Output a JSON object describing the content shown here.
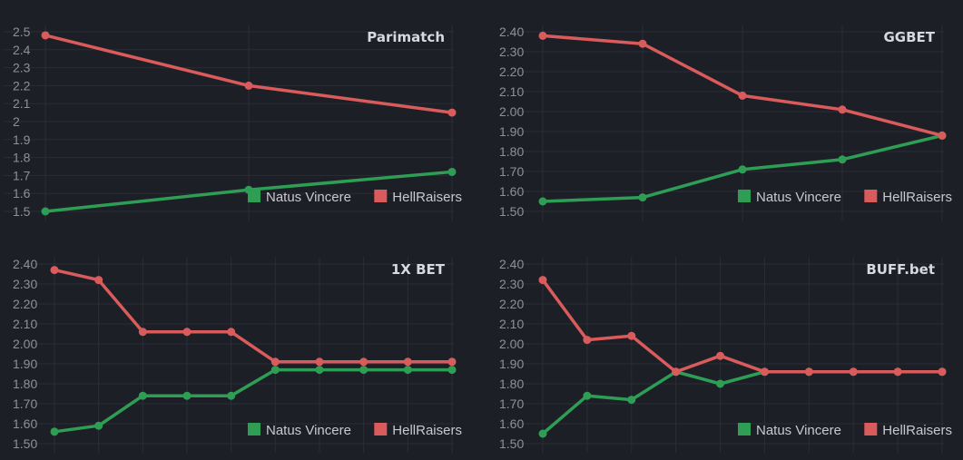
{
  "colors": {
    "natus": "#2e9e55",
    "hell": "#d95b5b",
    "background": "#1d1f27",
    "grid": "#2a2d37"
  },
  "chart_data": [
    {
      "type": "line",
      "title": "Parimatch",
      "x": [
        0,
        1,
        2
      ],
      "ylim": [
        1.5,
        2.5
      ],
      "yticks": [
        "1.5",
        "1.6",
        "1.7",
        "1.8",
        "1.9",
        "2",
        "2.1",
        "2.2",
        "2.3",
        "2.4",
        "2.5"
      ],
      "series": [
        {
          "name": "Natus Vincere",
          "color": "#2e9e55",
          "values": [
            1.5,
            1.62,
            1.72
          ]
        },
        {
          "name": "HellRaisers",
          "color": "#d95b5b",
          "values": [
            2.48,
            2.2,
            2.05
          ]
        }
      ],
      "legend": "bottom-right"
    },
    {
      "type": "line",
      "title": "GGBET",
      "x": [
        0,
        1,
        2,
        3,
        4
      ],
      "ylim": [
        1.5,
        2.4
      ],
      "yticks": [
        "1.50",
        "1.60",
        "1.70",
        "1.80",
        "1.90",
        "2.00",
        "2.10",
        "2.20",
        "2.30",
        "2.40"
      ],
      "series": [
        {
          "name": "Natus Vincere",
          "color": "#2e9e55",
          "values": [
            1.55,
            1.57,
            1.71,
            1.76,
            1.88
          ]
        },
        {
          "name": "HellRaisers",
          "color": "#d95b5b",
          "values": [
            2.38,
            2.34,
            2.08,
            2.01,
            1.88
          ]
        }
      ],
      "legend": "bottom-right"
    },
    {
      "type": "line",
      "title": "1X BET",
      "x": [
        0,
        1,
        2,
        3,
        4,
        5,
        6,
        7,
        8,
        9
      ],
      "ylim": [
        1.5,
        2.4
      ],
      "yticks": [
        "1.50",
        "1.60",
        "1.70",
        "1.80",
        "1.90",
        "2.00",
        "2.10",
        "2.20",
        "2.30",
        "2.40"
      ],
      "series": [
        {
          "name": "Natus Vincere",
          "color": "#2e9e55",
          "values": [
            1.56,
            1.59,
            1.74,
            1.74,
            1.74,
            1.87,
            1.87,
            1.87,
            1.87,
            1.87
          ]
        },
        {
          "name": "HellRaisers",
          "color": "#d95b5b",
          "values": [
            2.37,
            2.32,
            2.06,
            2.06,
            2.06,
            1.91,
            1.91,
            1.91,
            1.91,
            1.91
          ]
        }
      ],
      "legend": "bottom-right"
    },
    {
      "type": "line",
      "title": "BUFF.bet",
      "x": [
        0,
        1,
        2,
        3,
        4,
        5,
        6,
        7,
        8,
        9
      ],
      "ylim": [
        1.5,
        2.4
      ],
      "yticks": [
        "1.50",
        "1.60",
        "1.70",
        "1.80",
        "1.90",
        "2.00",
        "2.10",
        "2.20",
        "2.30",
        "2.40"
      ],
      "series": [
        {
          "name": "Natus Vincere",
          "color": "#2e9e55",
          "values": [
            1.55,
            1.74,
            1.72,
            1.86,
            1.8,
            1.86,
            1.86,
            1.86,
            1.86,
            1.86
          ]
        },
        {
          "name": "HellRaisers",
          "color": "#d95b5b",
          "values": [
            2.32,
            2.02,
            2.04,
            1.86,
            1.94,
            1.86,
            1.86,
            1.86,
            1.86,
            1.86
          ]
        }
      ],
      "legend": "bottom-right"
    }
  ]
}
